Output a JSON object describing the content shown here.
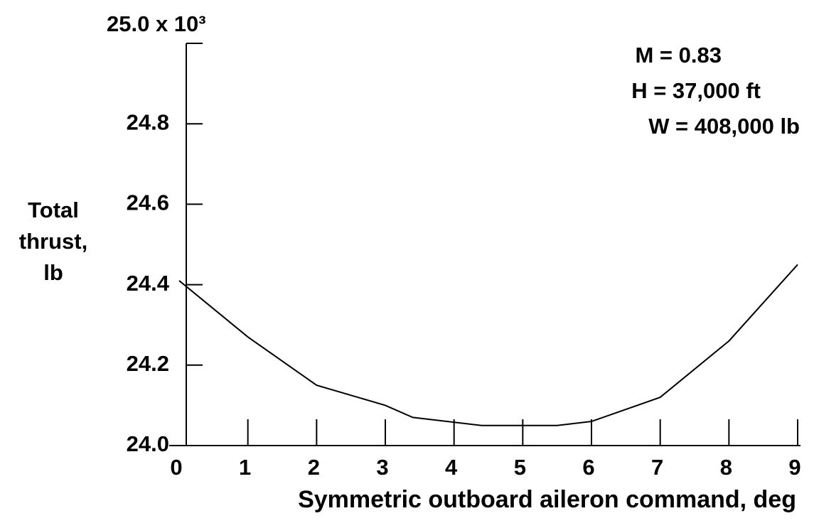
{
  "chart_data": {
    "type": "line",
    "x_label": "Symmetric outboard aileron command, deg",
    "y_label": [
      "Total",
      "thrust,",
      "lb"
    ],
    "annotations": [
      "M = 0.83",
      "H = 37,000 ft",
      "W = 408,000 lb"
    ],
    "x": [
      0,
      1,
      2,
      3,
      3.4,
      4.4,
      5,
      5.5,
      6,
      7,
      8,
      9
    ],
    "series": [
      {
        "color": "#000000",
        "values": [
          24.41,
          24.27,
          24.15,
          24.1,
          24.07,
          24.05,
          24.05,
          24.05,
          24.06,
          24.12,
          24.26,
          24.45
        ]
      }
    ],
    "xlim": [
      0,
      9
    ],
    "xticks": [
      0,
      1,
      2,
      3,
      4,
      5,
      6,
      7,
      8,
      9
    ],
    "ylim": [
      24.0,
      25.0
    ],
    "yticks": [
      {
        "value": 24.0,
        "label": "24.0"
      },
      {
        "value": 24.2,
        "label": "24.2"
      },
      {
        "value": 24.4,
        "label": "24.4"
      },
      {
        "value": 24.6,
        "label": "24.6"
      },
      {
        "value": 24.8,
        "label": "24.8"
      },
      {
        "value": 25.0,
        "label": "25.0 x 10³"
      }
    ],
    "grid": false
  }
}
